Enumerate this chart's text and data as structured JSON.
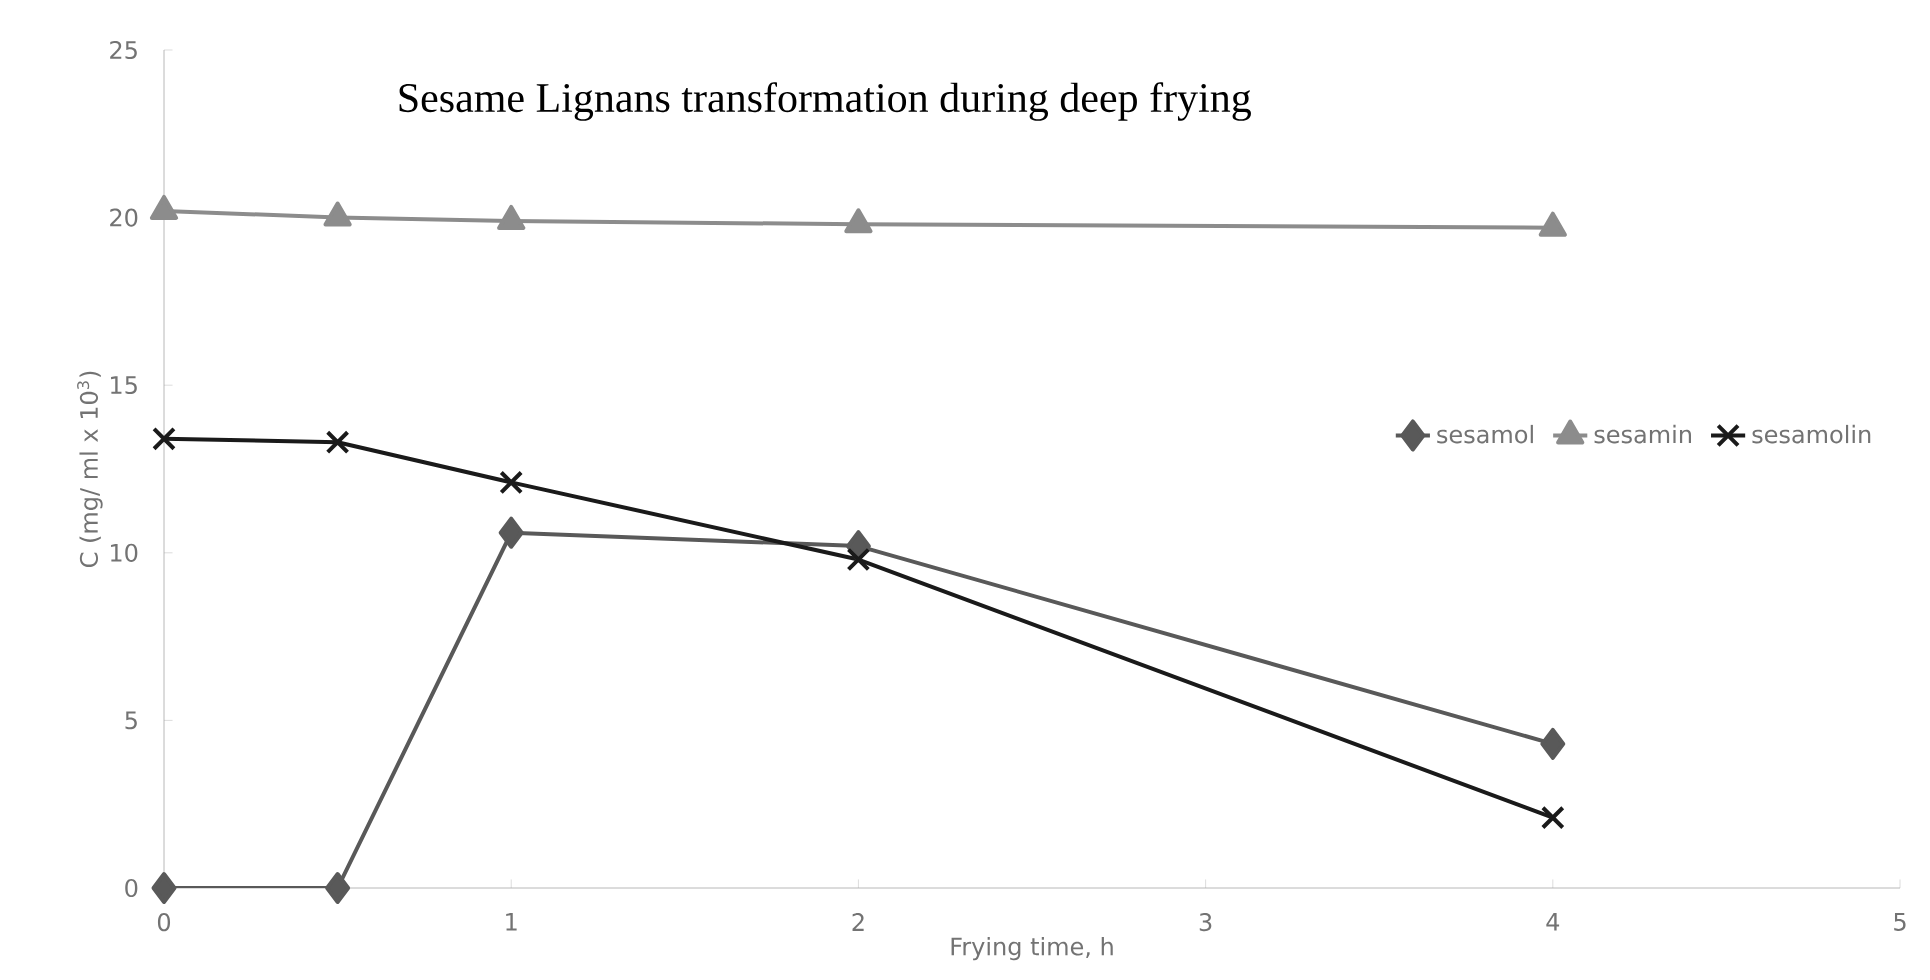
{
  "chart_data": {
    "type": "line",
    "title": "Sesame Lignans transformation during deep frying",
    "xlabel": "Frying time, h",
    "ylabel": "C (mg/ ml x 10$^{3}$)",
    "x": [
      0,
      0.5,
      1,
      2,
      4
    ],
    "series": [
      {
        "name": "sesamol",
        "color": "#595959",
        "marker": "diamond",
        "values": [
          0,
          0,
          10.6,
          10.2,
          4.3
        ]
      },
      {
        "name": "sesamin",
        "color": "#8c8c8c",
        "marker": "triangle",
        "values": [
          20.2,
          20.0,
          19.9,
          19.8,
          19.7
        ]
      },
      {
        "name": "sesamolin",
        "color": "#1a1a1a",
        "marker": "cross",
        "values": [
          13.4,
          13.3,
          12.1,
          9.8,
          2.1
        ]
      }
    ],
    "xlim": [
      0,
      5
    ],
    "xticks": [
      0,
      1,
      2,
      3,
      4,
      5
    ],
    "ylim": [
      0,
      25
    ],
    "yticks": [
      0,
      5,
      10,
      15,
      20,
      25
    ],
    "grid": false,
    "legend": "right",
    "line_style": "solid"
  }
}
